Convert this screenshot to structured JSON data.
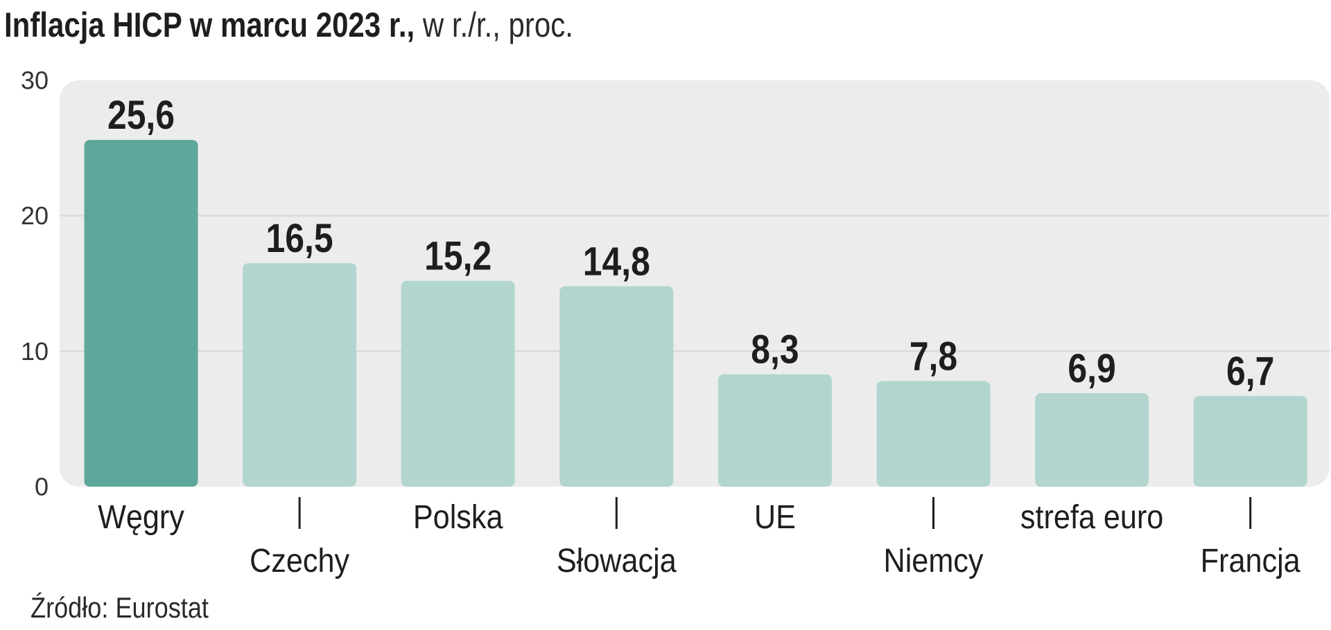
{
  "header": {
    "title_bold": "Inflacja HICP w marcu 2023 r.,",
    "title_light": " w r./r., proc."
  },
  "footer": {
    "source": "Źródło: Eurostat"
  },
  "colors": {
    "highlight": "#5ea89b",
    "bar": "#b2d6cf",
    "plot_bg": "#ececec",
    "gridline": "#d6d6d6",
    "text": "#1e1e1e"
  },
  "chart_data": {
    "type": "bar",
    "title": "Inflacja HICP w marcu 2023 r., w r./r., proc.",
    "categories": [
      "Węgry",
      "Czechy",
      "Polska",
      "Słowacja",
      "UE",
      "Niemcy",
      "strefa euro",
      "Francja"
    ],
    "values": [
      25.6,
      16.5,
      15.2,
      14.8,
      8.3,
      7.8,
      6.9,
      6.7
    ],
    "value_labels": [
      "25,6",
      "16,5",
      "15,2",
      "14,8",
      "8,3",
      "7,8",
      "6,9",
      "6,7"
    ],
    "highlighted_category": "Węgry",
    "ylim": [
      0,
      30
    ],
    "yticks": [
      0,
      10,
      20,
      30
    ],
    "ytick_labels": [
      "0",
      "10",
      "20",
      "30"
    ],
    "xlabel": "",
    "ylabel": "",
    "grid": true,
    "legend": "none"
  }
}
